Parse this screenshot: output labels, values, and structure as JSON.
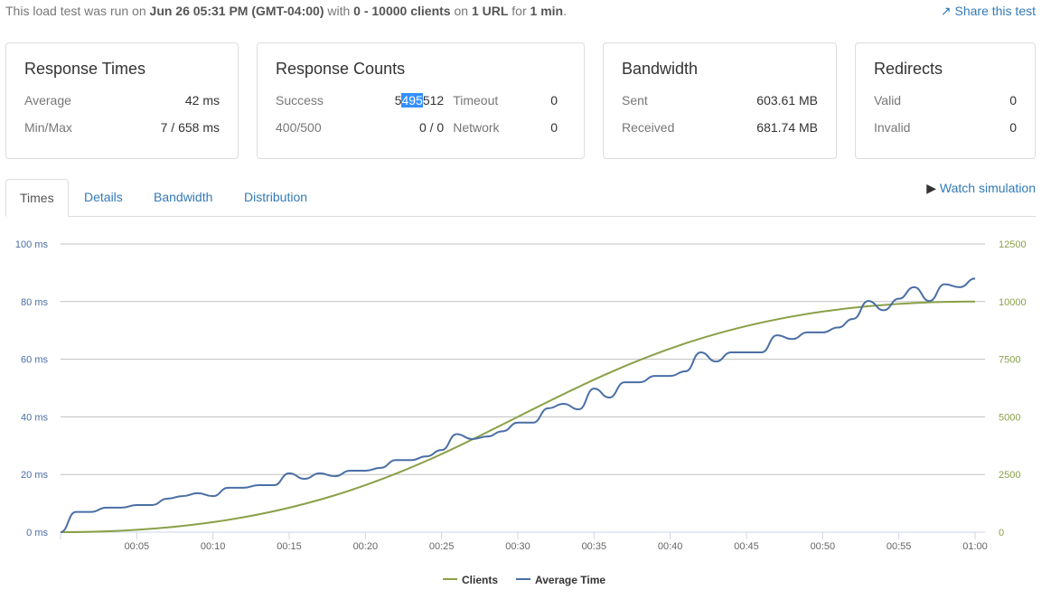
{
  "summary": {
    "t1": "This load test was run on ",
    "date": "Jun 26 05:31 PM (GMT-04:00)",
    "t2": " with ",
    "clients": "0 - 10000 clients",
    "t3": " on ",
    "urls": "1 URL",
    "t4": " for ",
    "duration": "1 min",
    "t5": "."
  },
  "share_label": "Share this test",
  "cards": {
    "times": {
      "title": "Response Times",
      "avg_label": "Average",
      "avg": "42 ms",
      "minmax_label": "Min/Max",
      "minmax": "7 / 658 ms"
    },
    "counts": {
      "title": "Response Counts",
      "success_label": "Success",
      "success_a": "5",
      "success_sel": "495",
      "success_b": "512",
      "timeout_label": "Timeout",
      "timeout": "0",
      "err_label": "400/500",
      "err": "0 / 0",
      "network_label": "Network",
      "network": "0"
    },
    "bandwidth": {
      "title": "Bandwidth",
      "sent_label": "Sent",
      "sent": "603.61 MB",
      "recv_label": "Received",
      "recv": "681.74 MB"
    },
    "redirects": {
      "title": "Redirects",
      "valid_label": "Valid",
      "valid": "0",
      "invalid_label": "Invalid",
      "invalid": "0"
    }
  },
  "tabs": [
    "Times",
    "Details",
    "Bandwidth",
    "Distribution"
  ],
  "watch_label": "Watch simulation",
  "chart_data": {
    "type": "line",
    "x_ticks": [
      "00:05",
      "00:10",
      "00:15",
      "00:20",
      "00:25",
      "00:30",
      "00:35",
      "00:40",
      "00:45",
      "00:50",
      "00:55",
      "01:00"
    ],
    "xlim": [
      0,
      60
    ],
    "y_left": {
      "ticks": [
        "0 ms",
        "20 ms",
        "40 ms",
        "60 ms",
        "80 ms",
        "100 ms"
      ],
      "range": [
        0,
        100
      ]
    },
    "y_right": {
      "ticks": [
        "0",
        "2500",
        "5000",
        "7500",
        "10000",
        "12500"
      ],
      "range": [
        0,
        12500
      ]
    },
    "series": [
      {
        "name": "Clients",
        "axis": "right",
        "color": "#8aa048",
        "x": [
          0,
          60
        ],
        "values": [
          0,
          10000
        ]
      },
      {
        "name": "Average Time",
        "axis": "left",
        "color": "#4a6fa5",
        "x": [
          0,
          1,
          2,
          3,
          4,
          5,
          6,
          7,
          8,
          9,
          10,
          11,
          12,
          13,
          14,
          15,
          16,
          17,
          18,
          19,
          20,
          21,
          22,
          23,
          24,
          25,
          26,
          27,
          28,
          29,
          30,
          31,
          32,
          33,
          34,
          35,
          36,
          37,
          38,
          39,
          40,
          41,
          42,
          43,
          44,
          45,
          46,
          47,
          48,
          49,
          50,
          51,
          52,
          53,
          54,
          55,
          56,
          57,
          58,
          59,
          60
        ],
        "values": [
          0,
          7,
          7,
          8.5,
          8.5,
          9.4,
          9.4,
          11.6,
          12.5,
          13.5,
          12.5,
          15.4,
          15.4,
          16.3,
          16.3,
          20.4,
          18.5,
          20.4,
          19.4,
          21.3,
          21.3,
          22.3,
          25,
          25,
          26.3,
          28.5,
          34,
          32.3,
          33.2,
          35,
          38,
          38,
          43,
          44.5,
          42.6,
          49.8,
          46.7,
          52,
          52,
          54.2,
          54.2,
          55.8,
          62.4,
          59.2,
          62.4,
          62.4,
          62.4,
          68.3,
          67,
          69.3,
          69.3,
          71,
          74,
          80.2,
          77,
          81,
          85,
          80.2,
          86,
          85,
          88
        ]
      }
    ]
  }
}
